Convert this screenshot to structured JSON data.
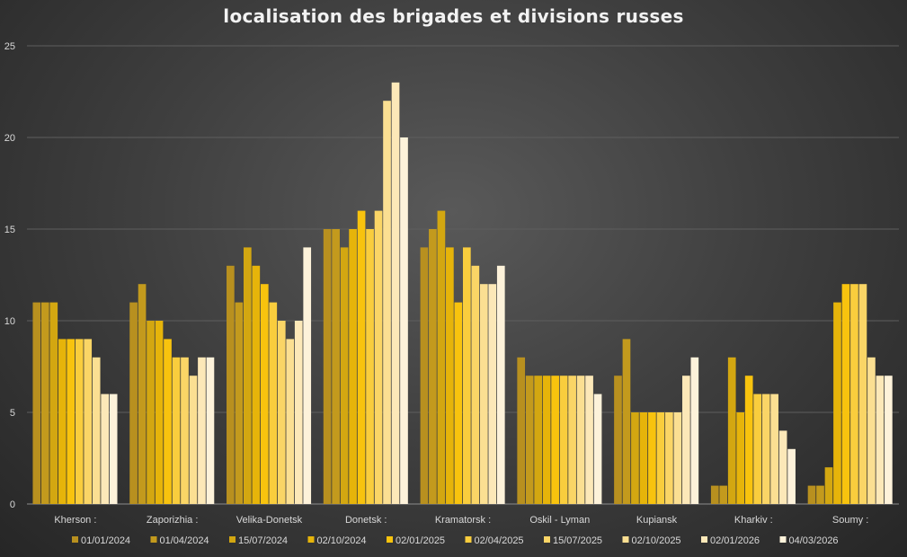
{
  "chart_data": {
    "type": "bar",
    "title": "localisation des brigades et divisions russes",
    "xlabel": "",
    "ylabel": "",
    "ylim": [
      0,
      25
    ],
    "yticks": [
      0,
      5,
      10,
      15,
      20,
      25
    ],
    "grid": true,
    "legend_position": "bottom",
    "categories": [
      "Kherson :",
      "Zaporizhia :",
      "Velika-Donetsk",
      "Donetsk :",
      "Kramatorsk :",
      "Oskil - Lyman",
      "Kupiansk",
      "Kharkiv :",
      "Soumy :"
    ],
    "series": [
      {
        "name": "01/01/2024",
        "color": "#b8901f",
        "values": [
          11,
          11,
          13,
          15,
          14,
          8,
          7,
          1,
          1
        ]
      },
      {
        "name": "01/04/2024",
        "color": "#c39a1d",
        "values": [
          11,
          12,
          11,
          15,
          15,
          7,
          9,
          1,
          1
        ]
      },
      {
        "name": "15/07/2024",
        "color": "#d3a711",
        "values": [
          11,
          10,
          14,
          14,
          16,
          7,
          5,
          8,
          2
        ]
      },
      {
        "name": "02/10/2024",
        "color": "#e6b40a",
        "values": [
          9,
          10,
          13,
          15,
          14,
          7,
          5,
          5,
          11
        ]
      },
      {
        "name": "02/01/2025",
        "color": "#f8c30e",
        "values": [
          9,
          9,
          12,
          16,
          11,
          7,
          5,
          7,
          12
        ]
      },
      {
        "name": "02/04/2025",
        "color": "#f9cd3d",
        "values": [
          9,
          8,
          11,
          15,
          14,
          7,
          5,
          6,
          12
        ]
      },
      {
        "name": "15/07/2025",
        "color": "#fad566",
        "values": [
          9,
          8,
          10,
          16,
          13,
          7,
          5,
          6,
          12
        ]
      },
      {
        "name": "02/10/2025",
        "color": "#fbdf92",
        "values": [
          8,
          7,
          9,
          22,
          12,
          7,
          5,
          6,
          8
        ]
      },
      {
        "name": "02/01/2026",
        "color": "#fce8b8",
        "values": [
          6,
          8,
          10,
          23,
          12,
          7,
          7,
          4,
          7
        ]
      },
      {
        "name": "04/03/2026",
        "color": "#fdf2da",
        "values": [
          6,
          8,
          14,
          20,
          13,
          6,
          8,
          3,
          7
        ]
      }
    ]
  }
}
